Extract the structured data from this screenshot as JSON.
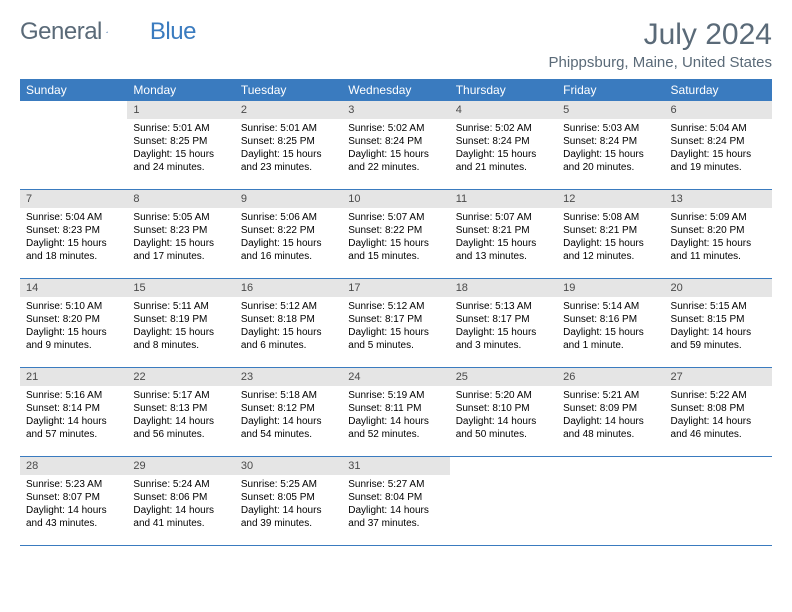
{
  "logo": {
    "text1": "General",
    "text2": "Blue"
  },
  "title": "July 2024",
  "location": "Phippsburg, Maine, United States",
  "colors": {
    "header_bg": "#3a7bbf",
    "header_text": "#ffffff",
    "daynum_bg": "#e5e5e5",
    "daynum_text": "#4a4a4a",
    "border": "#3a7bbf",
    "title_color": "#5a6a78"
  },
  "day_names": [
    "Sunday",
    "Monday",
    "Tuesday",
    "Wednesday",
    "Thursday",
    "Friday",
    "Saturday"
  ],
  "weeks": [
    [
      null,
      {
        "n": "1",
        "sunrise": "Sunrise: 5:01 AM",
        "sunset": "Sunset: 8:25 PM",
        "dl1": "Daylight: 15 hours",
        "dl2": "and 24 minutes."
      },
      {
        "n": "2",
        "sunrise": "Sunrise: 5:01 AM",
        "sunset": "Sunset: 8:25 PM",
        "dl1": "Daylight: 15 hours",
        "dl2": "and 23 minutes."
      },
      {
        "n": "3",
        "sunrise": "Sunrise: 5:02 AM",
        "sunset": "Sunset: 8:24 PM",
        "dl1": "Daylight: 15 hours",
        "dl2": "and 22 minutes."
      },
      {
        "n": "4",
        "sunrise": "Sunrise: 5:02 AM",
        "sunset": "Sunset: 8:24 PM",
        "dl1": "Daylight: 15 hours",
        "dl2": "and 21 minutes."
      },
      {
        "n": "5",
        "sunrise": "Sunrise: 5:03 AM",
        "sunset": "Sunset: 8:24 PM",
        "dl1": "Daylight: 15 hours",
        "dl2": "and 20 minutes."
      },
      {
        "n": "6",
        "sunrise": "Sunrise: 5:04 AM",
        "sunset": "Sunset: 8:24 PM",
        "dl1": "Daylight: 15 hours",
        "dl2": "and 19 minutes."
      }
    ],
    [
      {
        "n": "7",
        "sunrise": "Sunrise: 5:04 AM",
        "sunset": "Sunset: 8:23 PM",
        "dl1": "Daylight: 15 hours",
        "dl2": "and 18 minutes."
      },
      {
        "n": "8",
        "sunrise": "Sunrise: 5:05 AM",
        "sunset": "Sunset: 8:23 PM",
        "dl1": "Daylight: 15 hours",
        "dl2": "and 17 minutes."
      },
      {
        "n": "9",
        "sunrise": "Sunrise: 5:06 AM",
        "sunset": "Sunset: 8:22 PM",
        "dl1": "Daylight: 15 hours",
        "dl2": "and 16 minutes."
      },
      {
        "n": "10",
        "sunrise": "Sunrise: 5:07 AM",
        "sunset": "Sunset: 8:22 PM",
        "dl1": "Daylight: 15 hours",
        "dl2": "and 15 minutes."
      },
      {
        "n": "11",
        "sunrise": "Sunrise: 5:07 AM",
        "sunset": "Sunset: 8:21 PM",
        "dl1": "Daylight: 15 hours",
        "dl2": "and 13 minutes."
      },
      {
        "n": "12",
        "sunrise": "Sunrise: 5:08 AM",
        "sunset": "Sunset: 8:21 PM",
        "dl1": "Daylight: 15 hours",
        "dl2": "and 12 minutes."
      },
      {
        "n": "13",
        "sunrise": "Sunrise: 5:09 AM",
        "sunset": "Sunset: 8:20 PM",
        "dl1": "Daylight: 15 hours",
        "dl2": "and 11 minutes."
      }
    ],
    [
      {
        "n": "14",
        "sunrise": "Sunrise: 5:10 AM",
        "sunset": "Sunset: 8:20 PM",
        "dl1": "Daylight: 15 hours",
        "dl2": "and 9 minutes."
      },
      {
        "n": "15",
        "sunrise": "Sunrise: 5:11 AM",
        "sunset": "Sunset: 8:19 PM",
        "dl1": "Daylight: 15 hours",
        "dl2": "and 8 minutes."
      },
      {
        "n": "16",
        "sunrise": "Sunrise: 5:12 AM",
        "sunset": "Sunset: 8:18 PM",
        "dl1": "Daylight: 15 hours",
        "dl2": "and 6 minutes."
      },
      {
        "n": "17",
        "sunrise": "Sunrise: 5:12 AM",
        "sunset": "Sunset: 8:17 PM",
        "dl1": "Daylight: 15 hours",
        "dl2": "and 5 minutes."
      },
      {
        "n": "18",
        "sunrise": "Sunrise: 5:13 AM",
        "sunset": "Sunset: 8:17 PM",
        "dl1": "Daylight: 15 hours",
        "dl2": "and 3 minutes."
      },
      {
        "n": "19",
        "sunrise": "Sunrise: 5:14 AM",
        "sunset": "Sunset: 8:16 PM",
        "dl1": "Daylight: 15 hours",
        "dl2": "and 1 minute."
      },
      {
        "n": "20",
        "sunrise": "Sunrise: 5:15 AM",
        "sunset": "Sunset: 8:15 PM",
        "dl1": "Daylight: 14 hours",
        "dl2": "and 59 minutes."
      }
    ],
    [
      {
        "n": "21",
        "sunrise": "Sunrise: 5:16 AM",
        "sunset": "Sunset: 8:14 PM",
        "dl1": "Daylight: 14 hours",
        "dl2": "and 57 minutes."
      },
      {
        "n": "22",
        "sunrise": "Sunrise: 5:17 AM",
        "sunset": "Sunset: 8:13 PM",
        "dl1": "Daylight: 14 hours",
        "dl2": "and 56 minutes."
      },
      {
        "n": "23",
        "sunrise": "Sunrise: 5:18 AM",
        "sunset": "Sunset: 8:12 PM",
        "dl1": "Daylight: 14 hours",
        "dl2": "and 54 minutes."
      },
      {
        "n": "24",
        "sunrise": "Sunrise: 5:19 AM",
        "sunset": "Sunset: 8:11 PM",
        "dl1": "Daylight: 14 hours",
        "dl2": "and 52 minutes."
      },
      {
        "n": "25",
        "sunrise": "Sunrise: 5:20 AM",
        "sunset": "Sunset: 8:10 PM",
        "dl1": "Daylight: 14 hours",
        "dl2": "and 50 minutes."
      },
      {
        "n": "26",
        "sunrise": "Sunrise: 5:21 AM",
        "sunset": "Sunset: 8:09 PM",
        "dl1": "Daylight: 14 hours",
        "dl2": "and 48 minutes."
      },
      {
        "n": "27",
        "sunrise": "Sunrise: 5:22 AM",
        "sunset": "Sunset: 8:08 PM",
        "dl1": "Daylight: 14 hours",
        "dl2": "and 46 minutes."
      }
    ],
    [
      {
        "n": "28",
        "sunrise": "Sunrise: 5:23 AM",
        "sunset": "Sunset: 8:07 PM",
        "dl1": "Daylight: 14 hours",
        "dl2": "and 43 minutes."
      },
      {
        "n": "29",
        "sunrise": "Sunrise: 5:24 AM",
        "sunset": "Sunset: 8:06 PM",
        "dl1": "Daylight: 14 hours",
        "dl2": "and 41 minutes."
      },
      {
        "n": "30",
        "sunrise": "Sunrise: 5:25 AM",
        "sunset": "Sunset: 8:05 PM",
        "dl1": "Daylight: 14 hours",
        "dl2": "and 39 minutes."
      },
      {
        "n": "31",
        "sunrise": "Sunrise: 5:27 AM",
        "sunset": "Sunset: 8:04 PM",
        "dl1": "Daylight: 14 hours",
        "dl2": "and 37 minutes."
      },
      null,
      null,
      null
    ]
  ]
}
